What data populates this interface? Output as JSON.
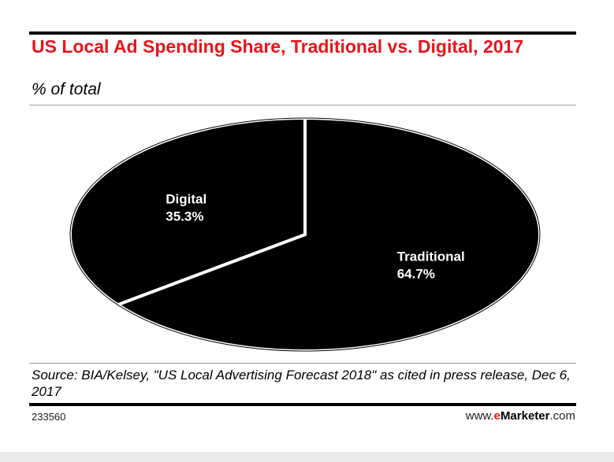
{
  "header": {
    "title": "US Local Ad Spending Share, Traditional vs. Digital, 2017",
    "subtitle": "% of total"
  },
  "footer": {
    "source": "Source: BIA/Kelsey, \"US Local Advertising Forecast 2018\" as cited in press release, Dec 6, 2017",
    "chart_id": "233560",
    "brand_prefix": "www.",
    "brand_e": "e",
    "brand_name": "Marketer",
    "brand_suffix": ".com"
  },
  "colors": {
    "title": "#e8141b",
    "slice_fill": "#000000",
    "slice_border": "#ffffff",
    "label": "#ffffff"
  },
  "chart_data": {
    "type": "pie",
    "title": "US Local Ad Spending Share, Traditional vs. Digital, 2017",
    "subtitle": "% of total",
    "categories": [
      "Traditional",
      "Digital"
    ],
    "values": [
      64.7,
      35.3
    ],
    "value_labels": [
      "64.7%",
      "35.3%"
    ],
    "unit": "%"
  }
}
